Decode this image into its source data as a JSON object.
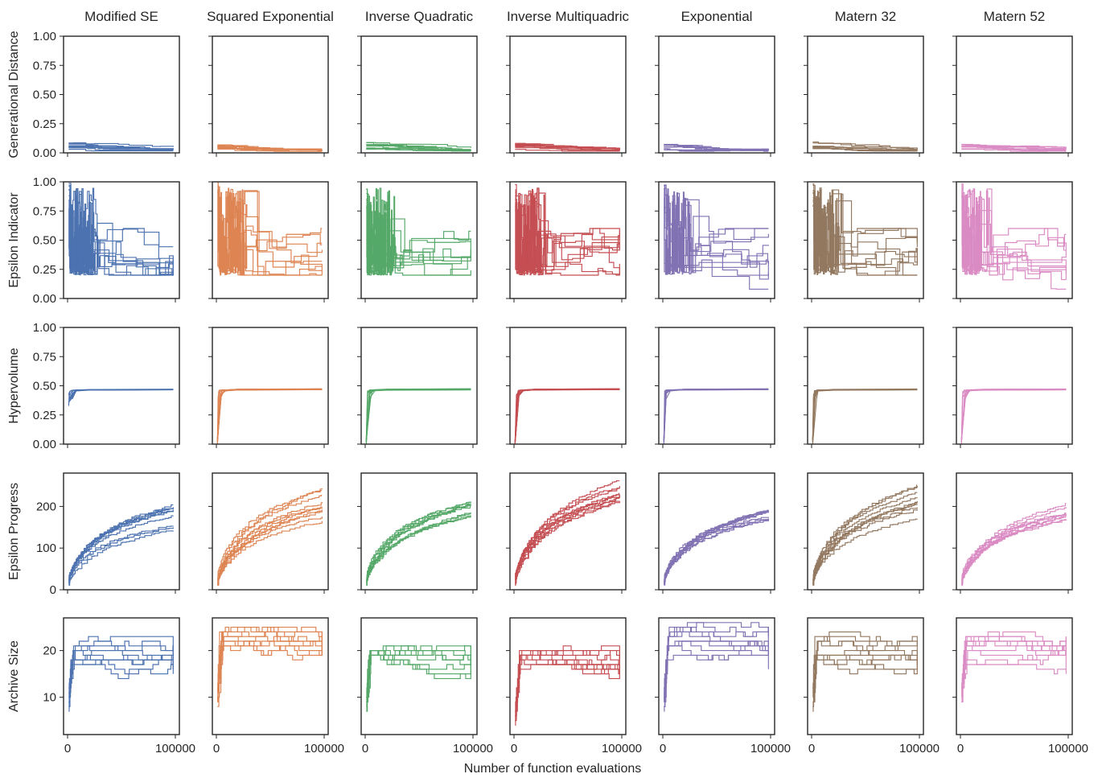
{
  "figure": {
    "xlabel": "Number of function evaluations",
    "x_tick_labels": [
      "0",
      "100000"
    ]
  },
  "chart_data": {
    "type": "line",
    "x_range": [
      0,
      100000
    ],
    "x_ticks": [
      0,
      100000
    ],
    "columns": [
      {
        "name": "Modified SE",
        "color": "#4c72b0"
      },
      {
        "name": "Squared Exponential",
        "color": "#dd8452"
      },
      {
        "name": "Inverse Quadratic",
        "color": "#55a868"
      },
      {
        "name": "Inverse Multiquadric",
        "color": "#c44e52"
      },
      {
        "name": "Exponential",
        "color": "#8172b3"
      },
      {
        "name": "Matern 32",
        "color": "#937860"
      },
      {
        "name": "Matern 52",
        "color": "#da8bc3"
      }
    ],
    "rows": [
      {
        "ylabel": "Generational Distance",
        "ylim": [
          0,
          1.0
        ],
        "yticks": [
          0,
          0.25,
          0.5,
          0.75,
          1.0
        ],
        "ytick_labels": [
          "0.00",
          "0.25",
          "0.50",
          "0.75",
          "1.00"
        ]
      },
      {
        "ylabel": "Epsilon Indicator",
        "ylim": [
          0,
          1.0
        ],
        "yticks": [
          0,
          0.25,
          0.5,
          0.75,
          1.0
        ],
        "ytick_labels": [
          "0.00",
          "0.25",
          "0.50",
          "0.75",
          "1.00"
        ]
      },
      {
        "ylabel": "Hypervolume",
        "ylim": [
          0,
          1.0
        ],
        "yticks": [
          0,
          0.25,
          0.5,
          0.75,
          1.0
        ],
        "ytick_labels": [
          "0.00",
          "0.25",
          "0.50",
          "0.75",
          "1.00"
        ]
      },
      {
        "ylabel": "Epsilon Progress",
        "ylim": [
          0,
          280
        ],
        "yticks": [
          0,
          100,
          200
        ],
        "ytick_labels": [
          "0",
          "100",
          "200"
        ]
      },
      {
        "ylabel": "Archive Size",
        "ylim": [
          2,
          27
        ],
        "yticks": [
          10,
          20
        ],
        "ytick_labels": [
          "10",
          "20"
        ]
      }
    ],
    "approx_final_values": {
      "Generational Distance": [
        [
          0.02,
          0.03
        ],
        [
          0.02,
          0.04
        ],
        [
          0.02,
          0.03
        ],
        [
          0.02,
          0.03
        ],
        [
          0.01,
          0.02
        ],
        [
          0.01,
          0.02
        ],
        [
          0.02,
          0.03
        ]
      ],
      "Epsilon Indicator": [
        [
          0.12,
          0.53
        ],
        [
          0.2,
          0.38
        ],
        [
          0.2,
          0.58
        ],
        [
          0.2,
          0.52
        ],
        [
          0.07,
          0.37
        ],
        [
          0.2,
          0.47
        ],
        [
          0.11,
          0.43
        ]
      ],
      "Hypervolume": [
        [
          0.465,
          0.47
        ],
        [
          0.47,
          0.475
        ],
        [
          0.465,
          0.47
        ],
        [
          0.465,
          0.47
        ],
        [
          0.465,
          0.47
        ],
        [
          0.465,
          0.47
        ],
        [
          0.465,
          0.47
        ]
      ],
      "Epsilon Progress": [
        [
          138,
          208
        ],
        [
          150,
          243
        ],
        [
          175,
          213
        ],
        [
          208,
          268
        ],
        [
          153,
          200
        ],
        [
          160,
          258
        ],
        [
          163,
          205
        ]
      ],
      "Archive Size": [
        [
          15,
          21
        ],
        [
          18,
          23
        ],
        [
          17,
          18
        ],
        [
          16,
          19
        ],
        [
          16,
          23
        ],
        [
          16,
          21
        ],
        [
          14,
          23
        ]
      ]
    }
  }
}
